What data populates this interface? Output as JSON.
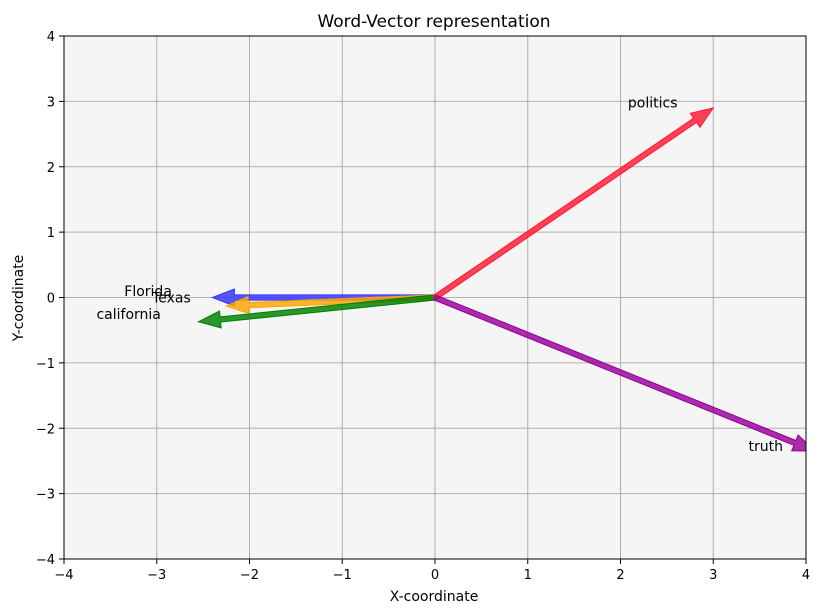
{
  "chart_data": {
    "type": "vector",
    "title": "Word-Vector representation",
    "xlabel": "X-coordinate",
    "ylabel": "Y-coordinate",
    "xlim": [
      -4,
      4
    ],
    "ylim": [
      -4,
      4
    ],
    "xticks": [
      "−4",
      "−3",
      "−2",
      "−1",
      "0",
      "1",
      "2",
      "3",
      "4"
    ],
    "yticks": [
      "−4",
      "−3",
      "−2",
      "−1",
      "0",
      "1",
      "2",
      "3",
      "4"
    ],
    "grid": true,
    "background": "#f5f5f5",
    "vectors": [
      {
        "label": "Florida",
        "x": -2.4,
        "y": 0.0,
        "color": "#3333ff",
        "label_x": -3.35,
        "label_y": 0.1
      },
      {
        "label": "Texas",
        "x": -2.25,
        "y": -0.13,
        "color": "#ffa500",
        "label_x": -3.05,
        "label_y": 0.0
      },
      {
        "label": "california",
        "x": -2.55,
        "y": -0.37,
        "color": "#008000",
        "label_x": -3.65,
        "label_y": -0.25
      },
      {
        "label": "politics",
        "x": 3.0,
        "y": 2.9,
        "color": "#ff1a33",
        "label_x": 2.08,
        "label_y": 2.98
      },
      {
        "label": "truth",
        "x": 4.1,
        "y": -2.35,
        "color": "#990099",
        "label_x": 3.38,
        "label_y": -2.27
      }
    ]
  }
}
